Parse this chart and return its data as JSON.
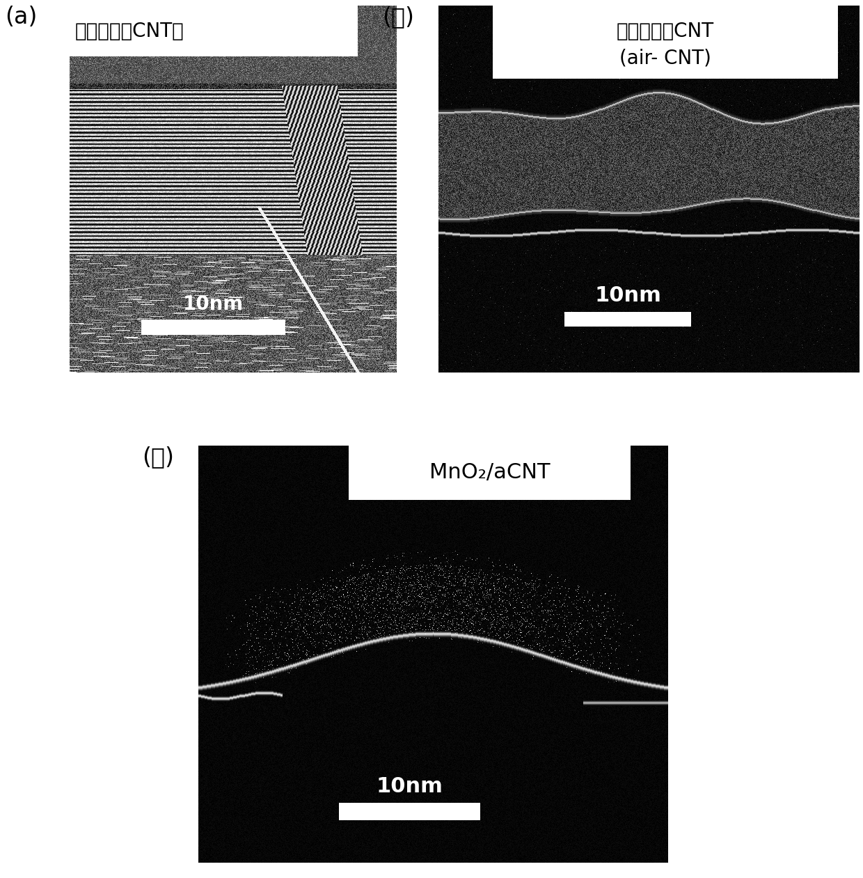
{
  "figure_bg": "#ffffff",
  "panel_a": {
    "label": "(a)",
    "title": "预氧化前的CNT｜",
    "title_bg": "#ffffff",
    "scale_text": "10nm"
  },
  "panel_b": {
    "label": "(ｂ)",
    "title_line1": "预氧化后的CNT",
    "title_line2": "(air- CNT)",
    "title_bg": "#ffffff",
    "scale_text": "10nm"
  },
  "panel_c": {
    "label": "(ｃ)",
    "title": "MnO₂/aCNT",
    "title_bg": "#ffffff",
    "scale_text": "10nm"
  },
  "font_size_label": 24,
  "font_size_title_a": 20,
  "font_size_title_b": 20,
  "font_size_title_c": 22,
  "font_size_scale": 20
}
